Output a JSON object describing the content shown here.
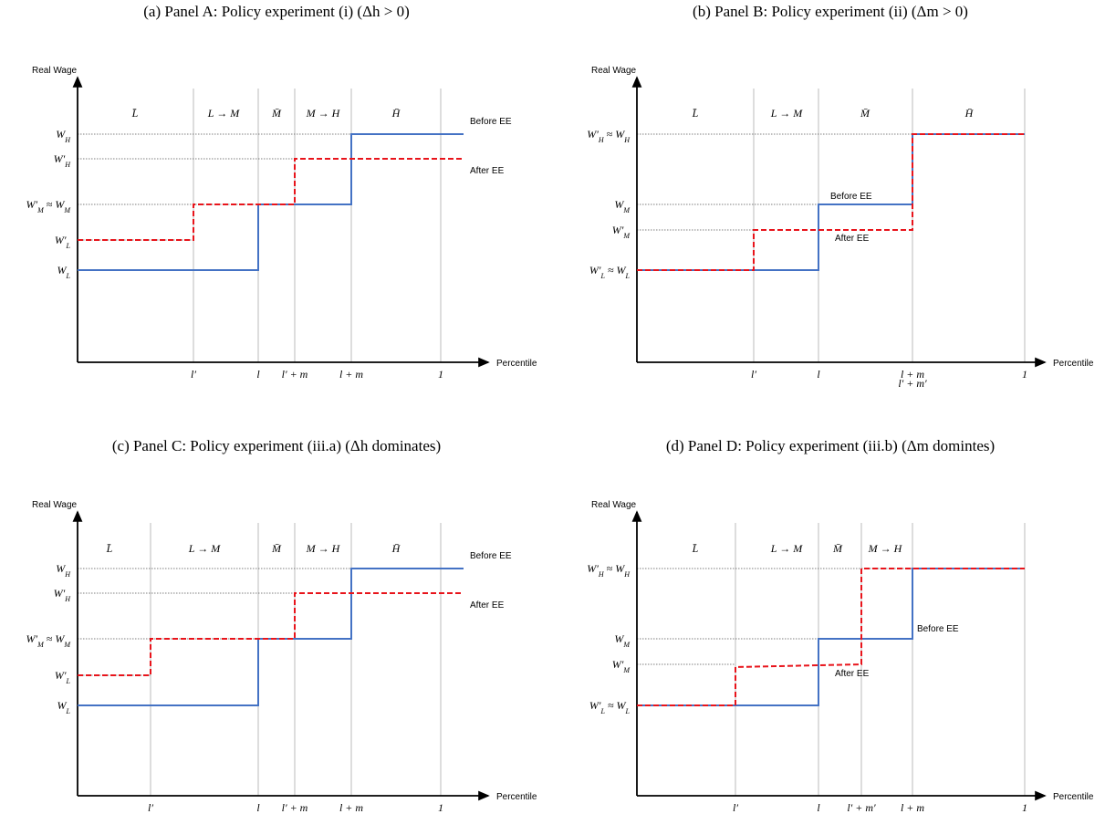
{
  "panels": [
    {
      "caption": "(a) Panel A: Policy experiment (i) (Δh > 0)",
      "y_axis": "Real Wage",
      "x_axis": "Percentile",
      "regions": [
        "L̄",
        "L → M",
        "M̄",
        "M → H",
        "H̄"
      ],
      "y_labels": [
        [
          "W",
          "H"
        ],
        [
          "W′",
          "H"
        ],
        [
          "W′",
          "M",
          " ≈ W",
          "M"
        ],
        [
          "W′",
          "L"
        ],
        [
          "W",
          "L"
        ]
      ],
      "x_labels": [
        "l′",
        "l",
        "l′ + m",
        "l + m",
        "1"
      ],
      "before": "Before EE",
      "after": "After EE"
    },
    {
      "caption": "(b) Panel B: Policy experiment (ii) (Δm > 0)",
      "y_axis": "Real Wage",
      "x_axis": "Percentile",
      "regions": [
        "L̄",
        "L → M",
        "M̄",
        "H̄"
      ],
      "y_labels": [
        [
          "W′",
          "H",
          " ≈ W",
          "H"
        ],
        [
          "W",
          "M"
        ],
        [
          "W′",
          "M"
        ],
        [
          "W′",
          "L",
          " ≈ W",
          "L"
        ]
      ],
      "x_labels": [
        "l′",
        "l",
        "l + m",
        "l′ + m′",
        "1"
      ],
      "before": "Before EE",
      "after": "After EE"
    },
    {
      "caption": "(c) Panel C: Policy experiment (iii.a) (Δh dominates)",
      "y_axis": "Real Wage",
      "x_axis": "Percentile",
      "regions": [
        "L̄",
        "L → M",
        "M̄",
        "M → H",
        "H̄"
      ],
      "y_labels": [
        [
          "W",
          "H"
        ],
        [
          "W′",
          "H"
        ],
        [
          "W′",
          "M",
          " ≈ W",
          "M"
        ],
        [
          "W′",
          "L"
        ],
        [
          "W",
          "L"
        ]
      ],
      "x_labels": [
        "l′",
        "l",
        "l′ + m",
        "l + m",
        "1"
      ],
      "before": "Before EE",
      "after": "After EE"
    },
    {
      "caption": "(d) Panel D: Policy experiment (iii.b) (Δm domintes)",
      "y_axis": "Real Wage",
      "x_axis": "Percentile",
      "regions": [
        "L̄",
        "L → M",
        "M̄",
        "M → H"
      ],
      "y_labels": [
        [
          "W′",
          "H",
          " ≈ W",
          "H"
        ],
        [
          "W",
          "M"
        ],
        [
          "W′",
          "M"
        ],
        [
          "W′",
          "L",
          " ≈ W",
          "L"
        ]
      ],
      "x_labels": [
        "l′",
        "l",
        "l′ + m′",
        "l + m",
        "1"
      ],
      "before": "Before EE",
      "after": "After EE"
    }
  ]
}
